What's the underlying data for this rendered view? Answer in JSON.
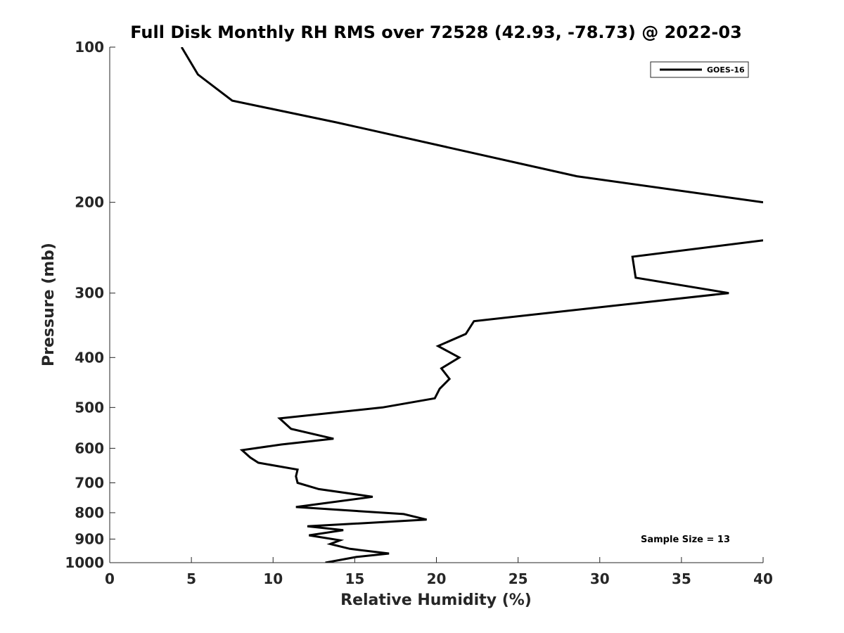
{
  "chart_data": {
    "type": "line",
    "title": "Full Disk Monthly RH RMS over 72528 (42.93, -78.73) @ 2022-03",
    "xlabel": "Relative Humidity (%)",
    "ylabel": "Pressure (mb)",
    "xlim": [
      0,
      40
    ],
    "ylim": [
      100,
      1000
    ],
    "y_scale": "log",
    "y_reversed": true,
    "grid": false,
    "legend_placement": "top-right",
    "x_ticks": [
      "0",
      "5",
      "10",
      "15",
      "20",
      "25",
      "30",
      "35",
      "40"
    ],
    "y_ticks": [
      "100",
      "200",
      "300",
      "400",
      "500",
      "600",
      "700",
      "800",
      "900",
      "1000"
    ],
    "annotation": "Sample Size = 13",
    "series": [
      {
        "name": "GOES-16",
        "color": "#000000",
        "segments": [
          [
            {
              "x": 4.4,
              "y": 100
            },
            {
              "x": 5.4,
              "y": 113
            },
            {
              "x": 7.5,
              "y": 127
            },
            {
              "x": 13.9,
              "y": 140
            },
            {
              "x": 28.6,
              "y": 178
            },
            {
              "x": 40.0,
              "y": 200
            }
          ],
          [
            {
              "x": 40.0,
              "y": 237
            },
            {
              "x": 32.0,
              "y": 255
            },
            {
              "x": 32.2,
              "y": 280
            },
            {
              "x": 37.9,
              "y": 300
            },
            {
              "x": 22.3,
              "y": 340
            },
            {
              "x": 21.8,
              "y": 360
            },
            {
              "x": 20.1,
              "y": 380
            },
            {
              "x": 21.4,
              "y": 400
            },
            {
              "x": 20.3,
              "y": 420
            },
            {
              "x": 20.8,
              "y": 440
            },
            {
              "x": 20.2,
              "y": 460
            },
            {
              "x": 19.9,
              "y": 480
            },
            {
              "x": 16.7,
              "y": 500
            },
            {
              "x": 10.4,
              "y": 525
            },
            {
              "x": 11.1,
              "y": 550
            },
            {
              "x": 13.7,
              "y": 575
            },
            {
              "x": 10.5,
              "y": 590
            },
            {
              "x": 8.1,
              "y": 605
            },
            {
              "x": 8.6,
              "y": 625
            },
            {
              "x": 9.1,
              "y": 640
            },
            {
              "x": 11.5,
              "y": 660
            },
            {
              "x": 11.4,
              "y": 680
            },
            {
              "x": 11.5,
              "y": 700
            },
            {
              "x": 12.8,
              "y": 720
            },
            {
              "x": 16.1,
              "y": 745
            },
            {
              "x": 11.4,
              "y": 780
            },
            {
              "x": 18.0,
              "y": 805
            },
            {
              "x": 19.4,
              "y": 825
            },
            {
              "x": 12.1,
              "y": 850
            },
            {
              "x": 14.3,
              "y": 865
            },
            {
              "x": 12.2,
              "y": 885
            },
            {
              "x": 14.1,
              "y": 905
            },
            {
              "x": 13.5,
              "y": 920
            },
            {
              "x": 14.7,
              "y": 940
            },
            {
              "x": 17.1,
              "y": 960
            },
            {
              "x": 15.1,
              "y": 975
            },
            {
              "x": 13.2,
              "y": 1000
            }
          ]
        ]
      }
    ]
  }
}
